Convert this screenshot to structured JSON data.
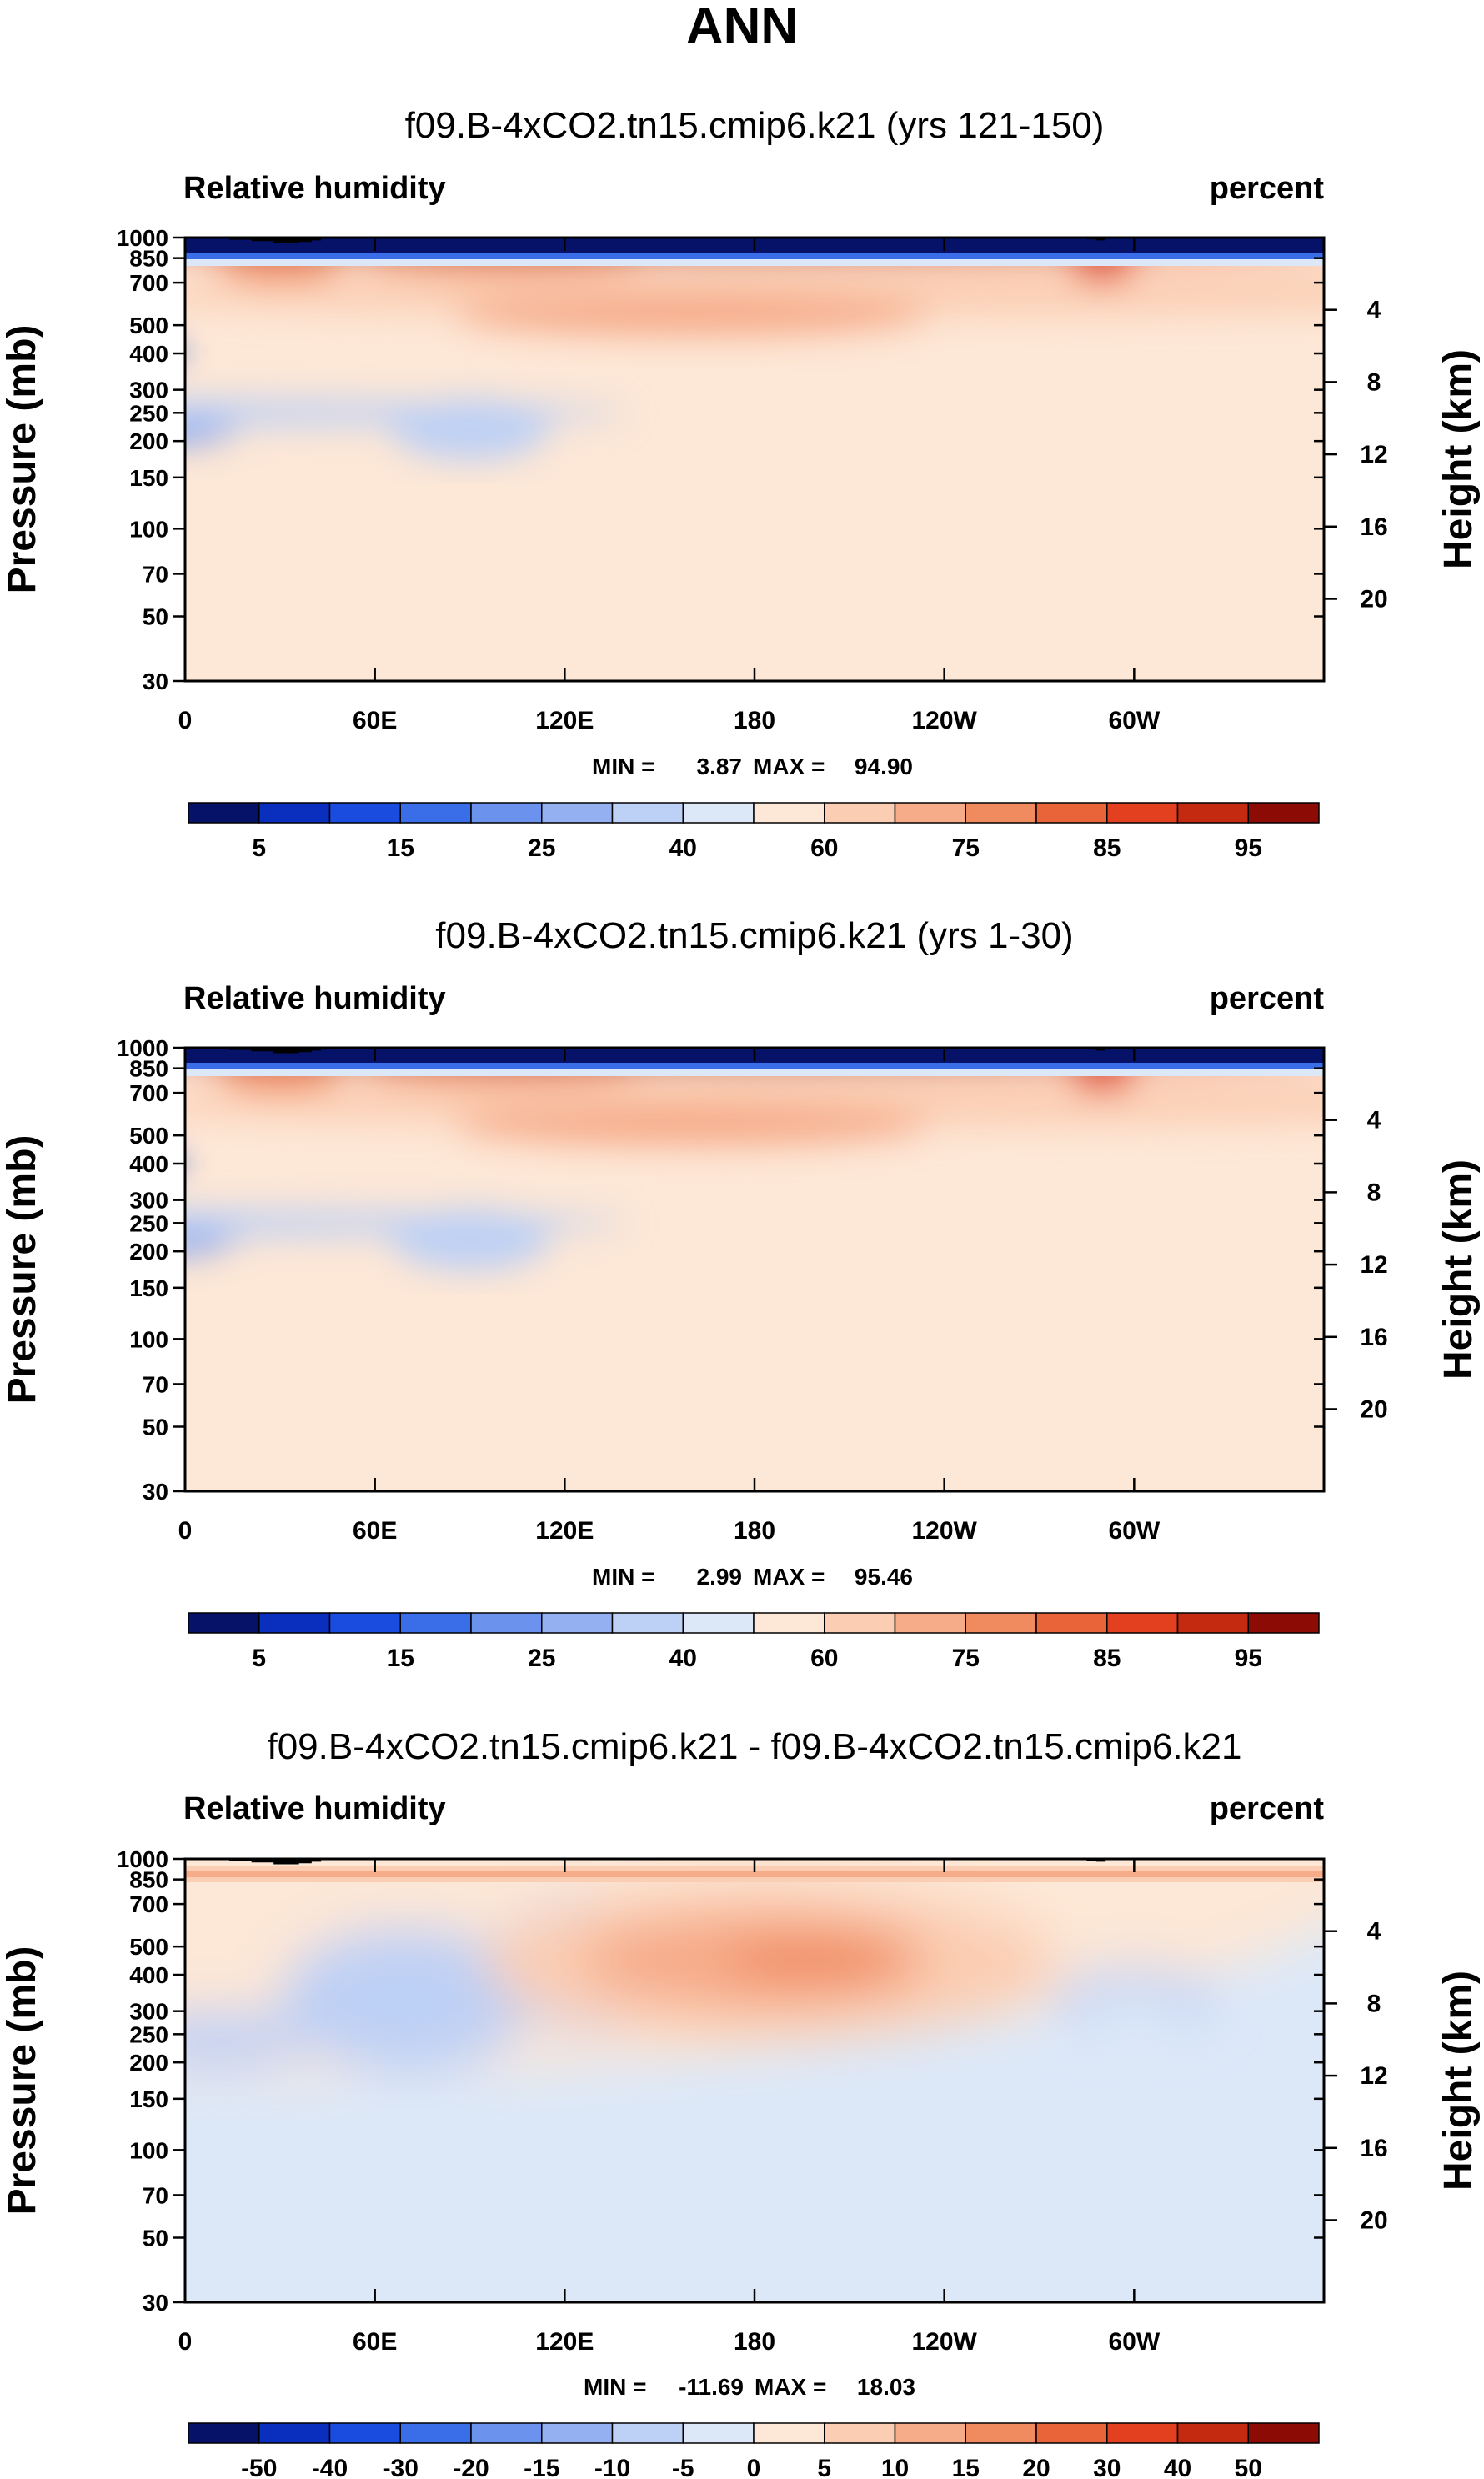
{
  "page_title": "ANN",
  "chart_data": [
    {
      "type": "contour",
      "title": "f09.B-4xCO2.tn15.cmip6.k21 (yrs 121-150)",
      "left_label": "Relative humidity",
      "right_label": "percent",
      "ylabel": "Pressure (mb)",
      "y2label": "Height (km)",
      "x_ticks": [
        "0",
        "60E",
        "120E",
        "180",
        "120W",
        "60W"
      ],
      "x_tick_values": [
        0,
        60,
        120,
        180,
        240,
        300
      ],
      "xlim": [
        0,
        360
      ],
      "y_ticks": [
        "30",
        "50",
        "70",
        "100",
        "150",
        "200",
        "250",
        "300",
        "400",
        "500",
        "700",
        "850",
        "1000"
      ],
      "y_tick_values": [
        30,
        50,
        70,
        100,
        150,
        200,
        250,
        300,
        400,
        500,
        700,
        850,
        1000
      ],
      "ylim": [
        1000,
        30
      ],
      "height_ticks": [
        "20",
        "16",
        "12",
        "8",
        "4"
      ],
      "height_values": [
        20,
        16,
        12,
        8,
        4
      ],
      "min_label": "MIN =",
      "min_value": "3.87",
      "max_label": "MAX =",
      "max_value": "94.90",
      "colorbar_labels": [
        "5",
        "15",
        "25",
        "40",
        "60",
        "75",
        "85",
        "95"
      ],
      "colorbar_label_positions": [
        1,
        3,
        5,
        7,
        9,
        11,
        13,
        15
      ],
      "colorbar_colors": [
        "#051268",
        "#0a2fbe",
        "#1a4ce0",
        "#3a6ee8",
        "#6b93ee",
        "#95b0f0",
        "#bdd0f5",
        "#dce8f8",
        "#fde7d6",
        "#fbcdb2",
        "#f6ab89",
        "#f08a5f",
        "#ea643a",
        "#e2401e",
        "#c42a10",
        "#8c0c05"
      ],
      "field": "rh"
    },
    {
      "type": "contour",
      "title": "f09.B-4xCO2.tn15.cmip6.k21 (yrs 1-30)",
      "left_label": "Relative humidity",
      "right_label": "percent",
      "ylabel": "Pressure (mb)",
      "y2label": "Height (km)",
      "x_ticks": [
        "0",
        "60E",
        "120E",
        "180",
        "120W",
        "60W"
      ],
      "x_tick_values": [
        0,
        60,
        120,
        180,
        240,
        300
      ],
      "xlim": [
        0,
        360
      ],
      "y_ticks": [
        "30",
        "50",
        "70",
        "100",
        "150",
        "200",
        "250",
        "300",
        "400",
        "500",
        "700",
        "850",
        "1000"
      ],
      "y_tick_values": [
        30,
        50,
        70,
        100,
        150,
        200,
        250,
        300,
        400,
        500,
        700,
        850,
        1000
      ],
      "ylim": [
        1000,
        30
      ],
      "height_ticks": [
        "20",
        "16",
        "12",
        "8",
        "4"
      ],
      "height_values": [
        20,
        16,
        12,
        8,
        4
      ],
      "min_label": "MIN =",
      "min_value": "2.99",
      "max_label": "MAX =",
      "max_value": "95.46",
      "colorbar_labels": [
        "5",
        "15",
        "25",
        "40",
        "60",
        "75",
        "85",
        "95"
      ],
      "colorbar_label_positions": [
        1,
        3,
        5,
        7,
        9,
        11,
        13,
        15
      ],
      "colorbar_colors": [
        "#051268",
        "#0a2fbe",
        "#1a4ce0",
        "#3a6ee8",
        "#6b93ee",
        "#95b0f0",
        "#bdd0f5",
        "#dce8f8",
        "#fde7d6",
        "#fbcdb2",
        "#f6ab89",
        "#f08a5f",
        "#ea643a",
        "#e2401e",
        "#c42a10",
        "#8c0c05"
      ],
      "field": "rh"
    },
    {
      "type": "contour",
      "title": "f09.B-4xCO2.tn15.cmip6.k21 - f09.B-4xCO2.tn15.cmip6.k21",
      "left_label": "Relative humidity",
      "right_label": "percent",
      "ylabel": "Pressure (mb)",
      "y2label": "Height (km)",
      "x_ticks": [
        "0",
        "60E",
        "120E",
        "180",
        "120W",
        "60W"
      ],
      "x_tick_values": [
        0,
        60,
        120,
        180,
        240,
        300
      ],
      "xlim": [
        0,
        360
      ],
      "y_ticks": [
        "30",
        "50",
        "70",
        "100",
        "150",
        "200",
        "250",
        "300",
        "400",
        "500",
        "700",
        "850",
        "1000"
      ],
      "y_tick_values": [
        30,
        50,
        70,
        100,
        150,
        200,
        250,
        300,
        400,
        500,
        700,
        850,
        1000
      ],
      "ylim": [
        1000,
        30
      ],
      "height_ticks": [
        "20",
        "16",
        "12",
        "8",
        "4"
      ],
      "height_values": [
        20,
        16,
        12,
        8,
        4
      ],
      "min_label": "MIN =",
      "min_value": "-11.69",
      "max_label": "MAX =",
      "max_value": "18.03",
      "colorbar_labels": [
        "-50",
        "-40",
        "-30",
        "-20",
        "-15",
        "-10",
        "-5",
        "0",
        "5",
        "10",
        "15",
        "20",
        "30",
        "40",
        "50"
      ],
      "colorbar_label_positions": [
        1,
        2,
        3,
        4,
        5,
        6,
        7,
        8,
        9,
        10,
        11,
        12,
        13,
        14,
        15
      ],
      "colorbar_colors": [
        "#051268",
        "#0a2fbe",
        "#1a4ce0",
        "#3a6ee8",
        "#6b93ee",
        "#95b0f0",
        "#bdd0f5",
        "#dce8f8",
        "#fde7d6",
        "#fbcdb2",
        "#f6ab89",
        "#f08a5f",
        "#ea643a",
        "#e2401e",
        "#c42a10",
        "#8c0c05"
      ],
      "field": "diff"
    }
  ]
}
